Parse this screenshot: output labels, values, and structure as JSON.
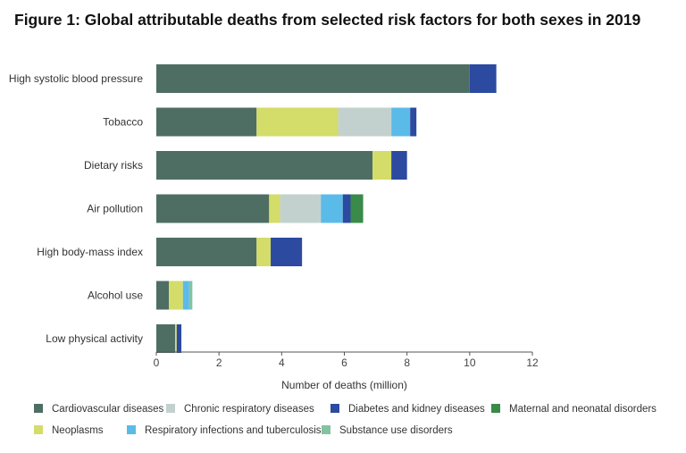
{
  "chart_data": {
    "type": "bar",
    "orientation": "horizontal",
    "stacked": true,
    "title": "Figure 1: Global attributable deaths from selected risk factors for both sexes in 2019",
    "xlabel": "Number of deaths (million)",
    "ylabel": "",
    "xlim": [
      0,
      12
    ],
    "xticks": [
      "0",
      "2",
      "4",
      "6",
      "8",
      "10",
      "12"
    ],
    "grid": false,
    "legend_position": "bottom",
    "categories": [
      "High systolic blood pressure",
      "Tobacco",
      "Dietary risks",
      "Air pollution",
      "High body-mass index",
      "Alcohol use",
      "Low physical activity"
    ],
    "series": [
      {
        "name": "Cardiovascular diseases",
        "color": "#4e6e64",
        "values": [
          10.0,
          3.2,
          6.9,
          3.6,
          3.2,
          0.4,
          0.6
        ]
      },
      {
        "name": "Neoplasms",
        "color": "#d4dc6a",
        "values": [
          0,
          2.6,
          0.6,
          0.35,
          0.45,
          0.45,
          0.05
        ]
      },
      {
        "name": "Chronic respiratory diseases",
        "color": "#c3d1ce",
        "values": [
          0,
          1.7,
          0,
          1.3,
          0,
          0,
          0
        ]
      },
      {
        "name": "Respiratory infections and tuberculosis",
        "color": "#5bbbe8",
        "values": [
          0,
          0.6,
          0,
          0.7,
          0,
          0.2,
          0
        ]
      },
      {
        "name": "Substance use disorders",
        "color": "#84c2a0",
        "values": [
          0,
          0,
          0,
          0,
          0,
          0.1,
          0
        ]
      },
      {
        "name": "Diabetes and kidney diseases",
        "color": "#2b4aa0",
        "values": [
          0.85,
          0.2,
          0.5,
          0.25,
          1.0,
          0,
          0.15
        ]
      },
      {
        "name": "Maternal and neonatal disorders",
        "color": "#3a8a4a",
        "values": [
          0,
          0,
          0,
          0.4,
          0,
          0,
          0
        ]
      }
    ],
    "legend_order": [
      "Cardiovascular diseases",
      "Chronic respiratory diseases",
      "Diabetes and kidney diseases",
      "Maternal and neonatal disorders",
      "Neoplasms",
      "Respiratory infections and tuberculosis",
      "Substance use disorders"
    ]
  }
}
